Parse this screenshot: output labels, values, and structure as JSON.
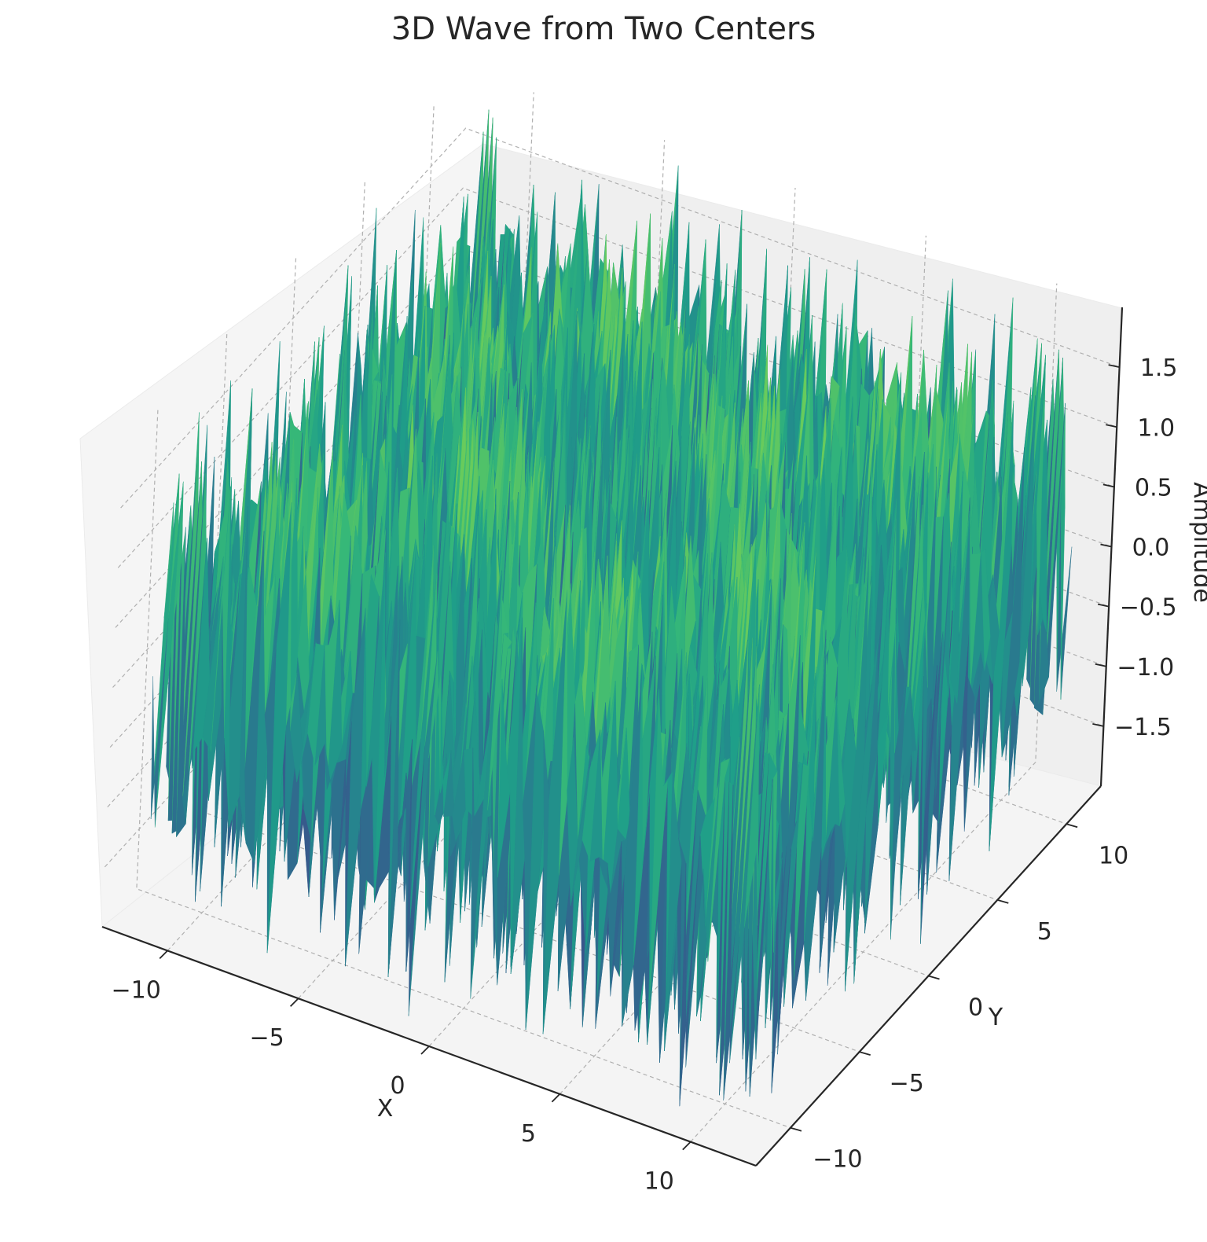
{
  "chart_data": {
    "type": "surface3d",
    "title": "3D Wave from Two Centers",
    "xlabel": "X",
    "ylabel": "Y",
    "zlabel": "Amplitude",
    "xlim": [
      -12.5,
      12.5
    ],
    "ylim": [
      -12.5,
      12.5
    ],
    "zlim": [
      -2,
      2
    ],
    "x_ticks": [
      -10,
      -5,
      0,
      5,
      10
    ],
    "x_tick_labels": [
      "−10",
      "−5",
      "0",
      "5",
      "10"
    ],
    "y_ticks": [
      -10,
      -5,
      0,
      5,
      10
    ],
    "y_tick_labels": [
      "−10",
      "−5",
      "0",
      "5",
      "10"
    ],
    "z_ticks": [
      -1.5,
      -1.0,
      -0.5,
      0.0,
      0.5,
      1.0,
      1.5
    ],
    "z_tick_labels": [
      "−1.5",
      "−1.0",
      "−0.5",
      "0.0",
      "0.5",
      "1.0",
      "1.5"
    ],
    "colormap": "viridis",
    "grid": true,
    "colors": {
      "pane": "#f2f2f2",
      "grid": "#b0b0b0",
      "axis": "#262626",
      "surface_low": "#3b3a85",
      "surface_mid": "#21908d",
      "surface_high": "#d6e21a"
    }
  }
}
